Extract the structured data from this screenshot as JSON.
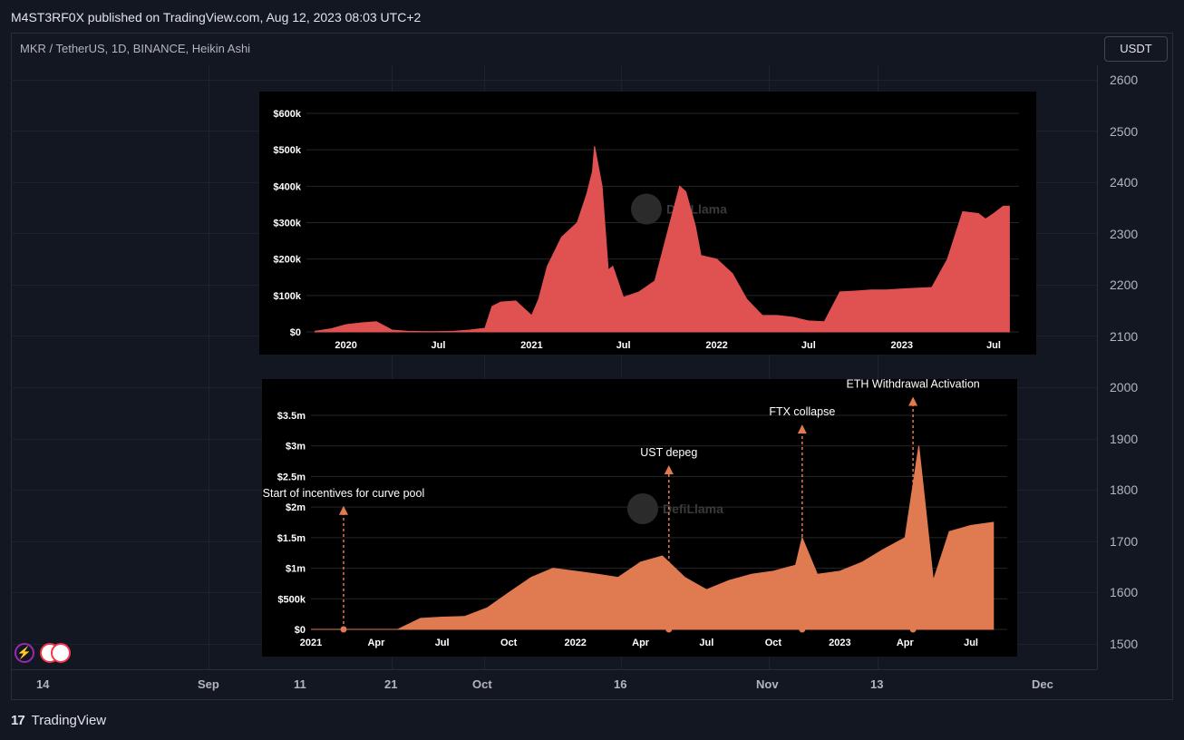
{
  "header": {
    "published": "M4ST3RF0X published on TradingView.com, Aug 12, 2023 08:03 UTC+2"
  },
  "symbol_line": "MKR / TetherUS, 1D, BINANCE, Heikin Ashi",
  "unit_button": "USDT",
  "price_axis": [
    "2600",
    "2500",
    "2400",
    "2300",
    "2200",
    "2100",
    "2000",
    "1900",
    "1800",
    "1700",
    "1600",
    "1500"
  ],
  "time_axis": [
    "14",
    "Sep",
    "11",
    "21",
    "Oct",
    "16",
    "Nov",
    "13",
    "Dec"
  ],
  "footer": {
    "brand": "TradingView",
    "logo": "17"
  },
  "icons": {
    "alert": "lightning-icon",
    "flags": "us-flag-icon"
  },
  "chart_data": [
    {
      "type": "area",
      "color": "#e05252",
      "watermark": "DefiLlama",
      "ytick_labels": [
        "$0",
        "$100k",
        "$200k",
        "$300k",
        "$400k",
        "$500k",
        "$600k"
      ],
      "xtick_labels": [
        "2020",
        "Jul",
        "2021",
        "Jul",
        "2022",
        "Jul",
        "2023",
        "Jul"
      ],
      "ylim": [
        0,
        600000
      ],
      "x": [
        "2019-11",
        "2019-12",
        "2020-01",
        "2020-02",
        "2020-03",
        "2020-04",
        "2020-05",
        "2020-06",
        "2020-07",
        "2020-08",
        "2020-09",
        "2020-10",
        "2020-10-15",
        "2020-11",
        "2020-12",
        "2021-01",
        "2021-01-15",
        "2021-02",
        "2021-03",
        "2021-04",
        "2021-04-20",
        "2021-05",
        "2021-05-05",
        "2021-05-20",
        "2021-06",
        "2021-06-10",
        "2021-07",
        "2021-08",
        "2021-09",
        "2021-10",
        "2021-10-20",
        "2021-11",
        "2021-11-20",
        "2021-12",
        "2022-01",
        "2022-02",
        "2022-03",
        "2022-04",
        "2022-05",
        "2022-06",
        "2022-07",
        "2022-08",
        "2022-09",
        "2022-10",
        "2022-11",
        "2022-12",
        "2023-01",
        "2023-02",
        "2023-03",
        "2023-04",
        "2023-05",
        "2023-06",
        "2023-06-15",
        "2023-07",
        "2023-07-20",
        "2023-08"
      ],
      "values": [
        2000,
        8000,
        20000,
        25000,
        28000,
        5000,
        2000,
        1000,
        1000,
        2000,
        5000,
        10000,
        70000,
        82000,
        85000,
        45000,
        90000,
        180000,
        260000,
        300000,
        380000,
        440000,
        510000,
        400000,
        170000,
        180000,
        95000,
        110000,
        140000,
        300000,
        400000,
        385000,
        290000,
        210000,
        200000,
        160000,
        90000,
        45000,
        45000,
        40000,
        30000,
        28000,
        110000,
        112000,
        115000,
        115000,
        118000,
        120000,
        122000,
        200000,
        330000,
        325000,
        310000,
        325000,
        345000,
        345000
      ]
    },
    {
      "type": "area",
      "color": "#e07a50",
      "watermark": "DefiLlama",
      "ytick_labels": [
        "$0",
        "$500k",
        "$1m",
        "$1.5m",
        "$2m",
        "$2.5m",
        "$3m",
        "$3.5m"
      ],
      "xtick_labels": [
        "2021",
        "Apr",
        "Jul",
        "Oct",
        "2022",
        "Apr",
        "Jul",
        "Oct",
        "2023",
        "Apr",
        "Jul"
      ],
      "ylim": [
        0,
        3500000
      ],
      "x": [
        "2021-01",
        "2021-02",
        "2021-03",
        "2021-04",
        "2021-05",
        "2021-06",
        "2021-07",
        "2021-08",
        "2021-09",
        "2021-10",
        "2021-11",
        "2021-12",
        "2022-01",
        "2022-02",
        "2022-03",
        "2022-04",
        "2022-05",
        "2022-06",
        "2022-07",
        "2022-08",
        "2022-09",
        "2022-10",
        "2022-11",
        "2022-11-10",
        "2022-12",
        "2023-01",
        "2023-02",
        "2023-03",
        "2023-04",
        "2023-04-20",
        "2023-05",
        "2023-05-10",
        "2023-06",
        "2023-07",
        "2023-08"
      ],
      "values": [
        0,
        0,
        0,
        0,
        0,
        180000,
        200000,
        210000,
        350000,
        600000,
        850000,
        1000000,
        950000,
        900000,
        850000,
        1100000,
        1200000,
        850000,
        650000,
        800000,
        900000,
        950000,
        1050000,
        1500000,
        900000,
        950000,
        1100000,
        1300000,
        1500000,
        3000000,
        1800000,
        800000,
        1600000,
        1700000,
        1750000
      ],
      "annotations": [
        {
          "label": "Start of incentives for curve pool",
          "date": "2021-02-15"
        },
        {
          "label": "UST depeg",
          "date": "2022-05-10"
        },
        {
          "label": "FTX collapse",
          "date": "2022-11-10"
        },
        {
          "label": "ETH Withdrawal Activation",
          "date": "2023-04-12"
        }
      ]
    }
  ]
}
